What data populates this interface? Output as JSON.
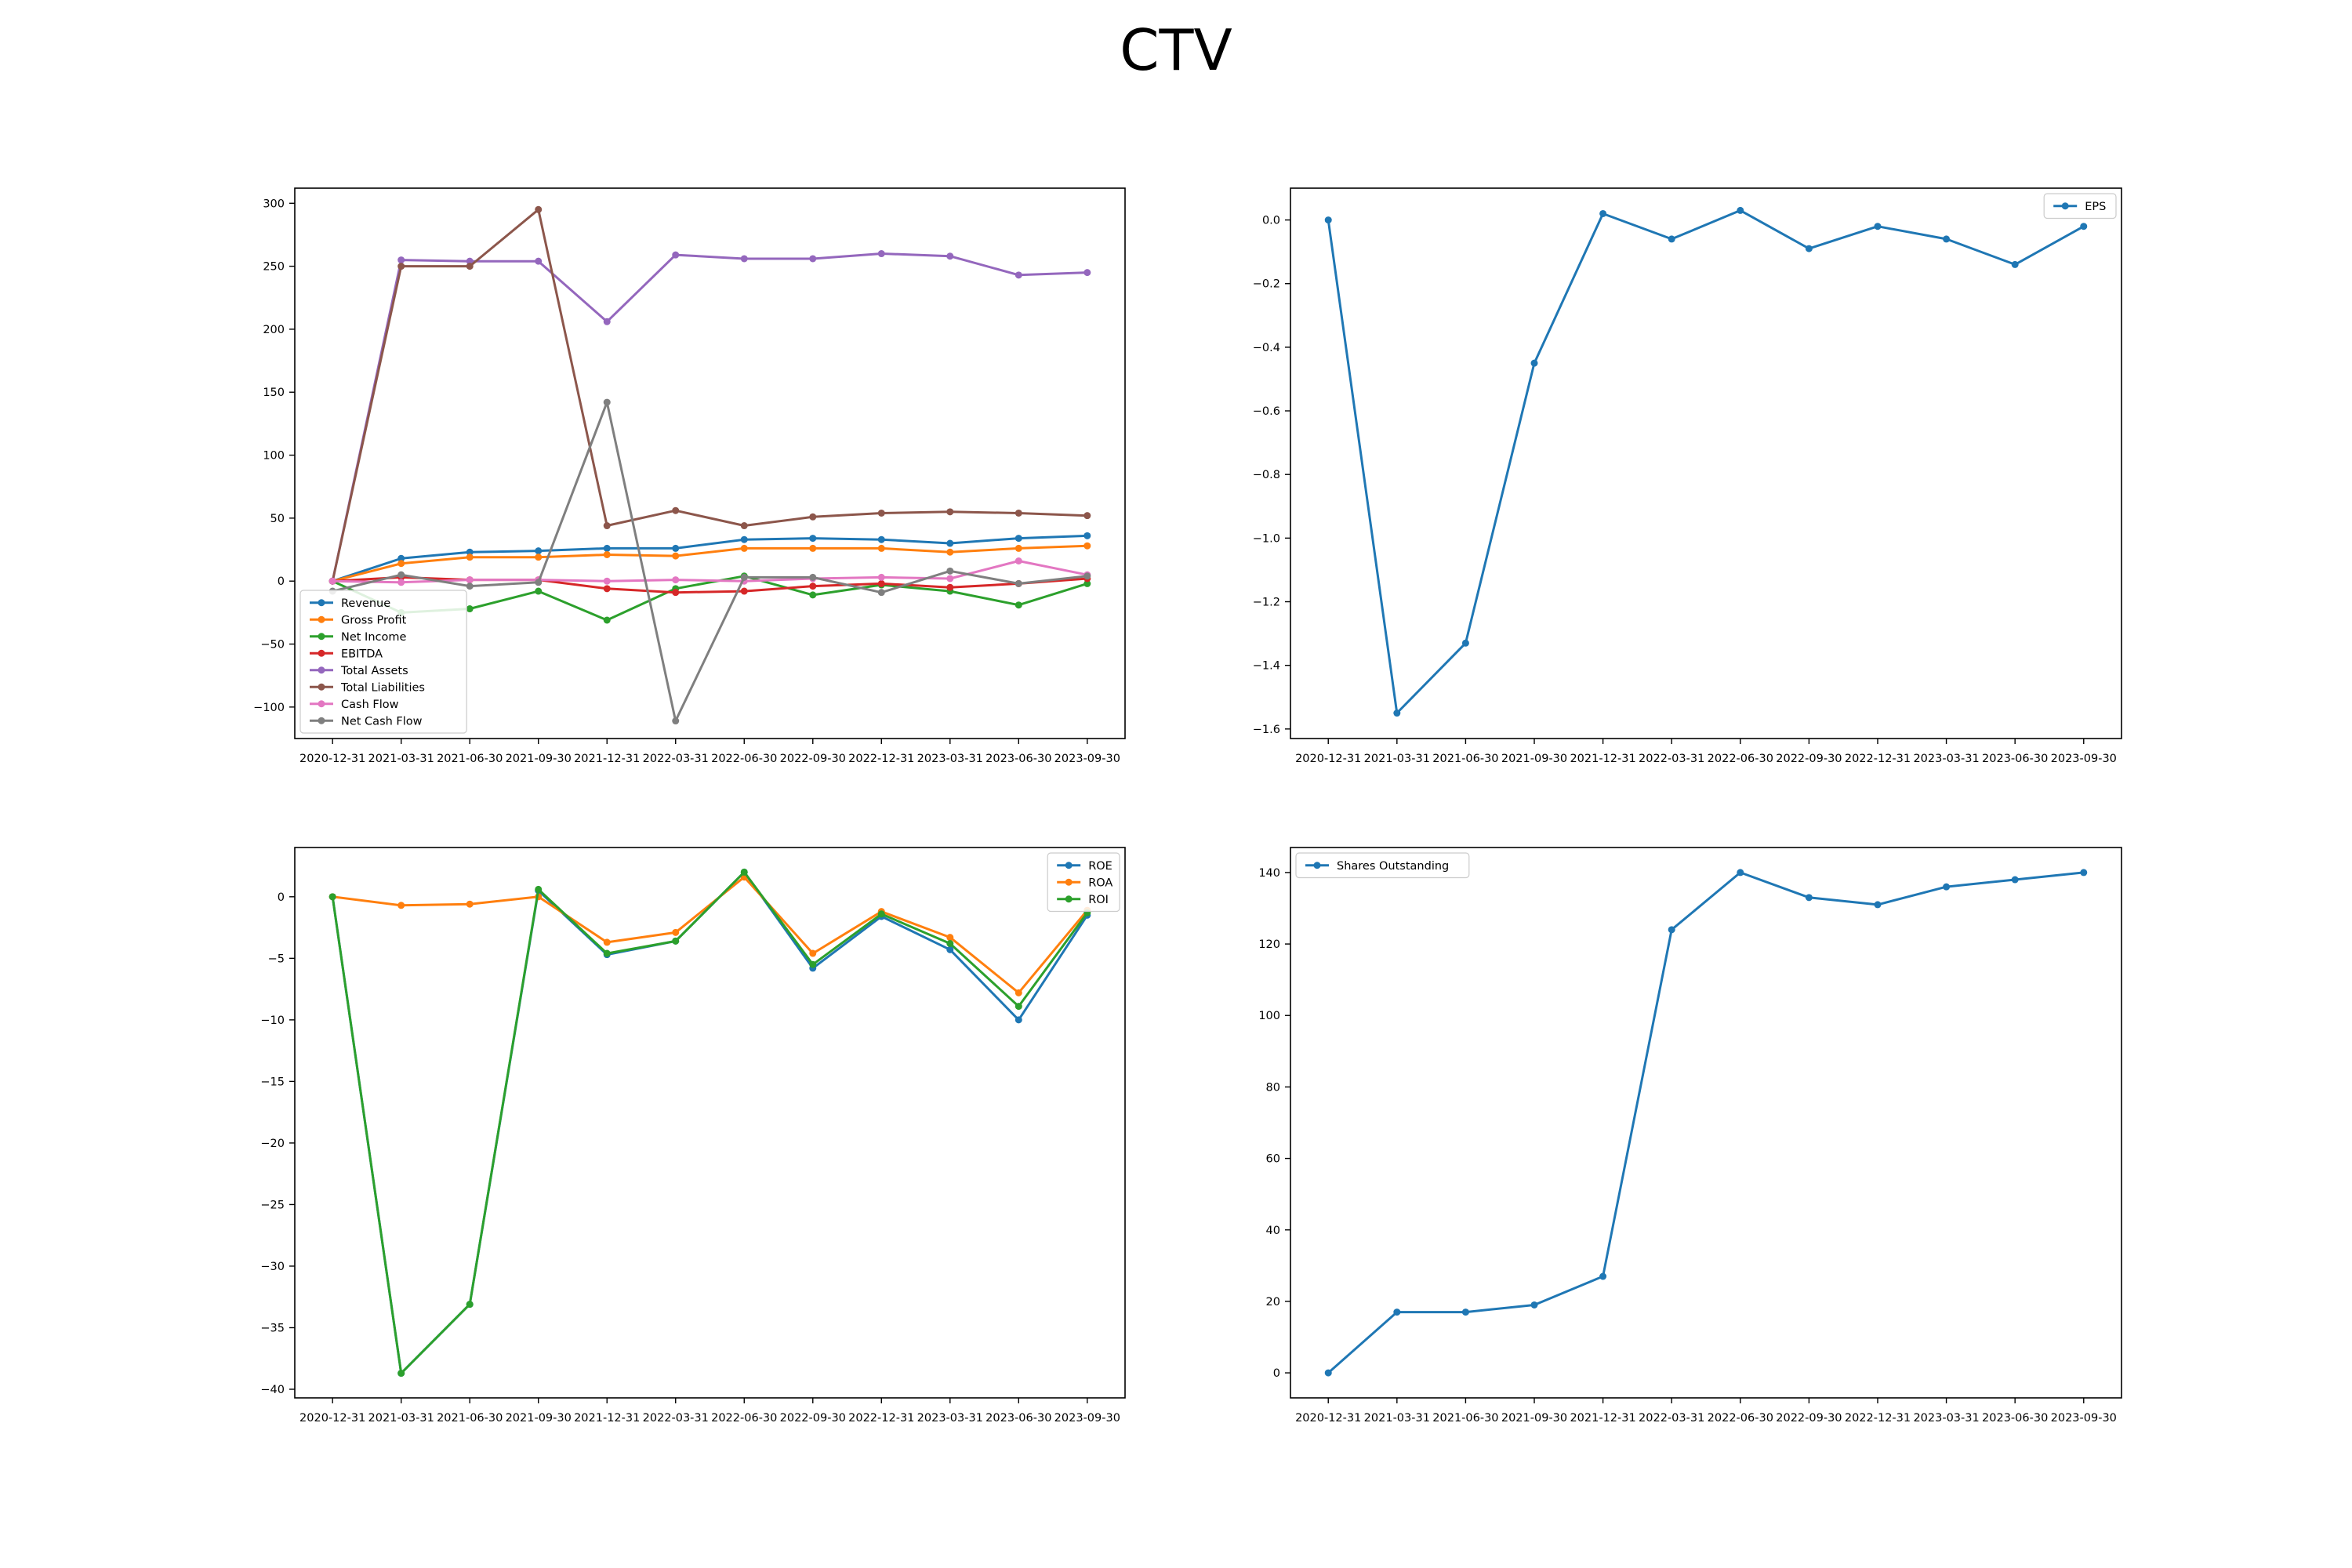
{
  "title": "CTV",
  "categories": [
    "2020-12-31",
    "2021-03-31",
    "2021-06-30",
    "2021-09-30",
    "2021-12-31",
    "2022-03-31",
    "2022-06-30",
    "2022-09-30",
    "2022-12-31",
    "2023-03-31",
    "2023-06-30",
    "2023-09-30"
  ],
  "chart_data": [
    {
      "type": "line",
      "title": "",
      "legend": "lower-left",
      "ylim": [
        -125,
        312
      ],
      "yticks": [
        -100,
        -50,
        0,
        50,
        100,
        150,
        200,
        250,
        300
      ],
      "series": [
        {
          "name": "Revenue",
          "color": "#1f77b4",
          "values": [
            0,
            18,
            23,
            24,
            26,
            26,
            33,
            34,
            33,
            30,
            34,
            36
          ]
        },
        {
          "name": "Gross Profit",
          "color": "#ff7f0e",
          "values": [
            0,
            14,
            19,
            19,
            21,
            20,
            26,
            26,
            26,
            23,
            26,
            28
          ]
        },
        {
          "name": "Net Income",
          "color": "#2ca02c",
          "values": [
            0,
            -25,
            -22,
            -8,
            -31,
            -6,
            4,
            -11,
            -3,
            -8,
            -19,
            -2
          ]
        },
        {
          "name": "EBITDA",
          "color": "#d62728",
          "values": [
            0,
            3,
            1,
            1,
            -6,
            -9,
            -8,
            -4,
            -2,
            -5,
            -2,
            2
          ]
        },
        {
          "name": "Total Assets",
          "color": "#9467bd",
          "values": [
            0,
            255,
            254,
            254,
            206,
            259,
            256,
            256,
            260,
            258,
            243,
            245
          ]
        },
        {
          "name": "Total Liabilities",
          "color": "#8c564b",
          "values": [
            0,
            250,
            250,
            295,
            44,
            56,
            44,
            51,
            54,
            55,
            54,
            52
          ]
        },
        {
          "name": "Cash Flow",
          "color": "#e377c2",
          "values": [
            0,
            -1,
            1,
            1,
            0,
            1,
            0,
            2,
            3,
            2,
            16,
            5
          ]
        },
        {
          "name": "Net Cash Flow",
          "color": "#7f7f7f",
          "values": [
            -8,
            5,
            -4,
            -1,
            142,
            -111,
            3,
            3,
            -9,
            8,
            -2,
            4
          ]
        }
      ]
    },
    {
      "type": "line",
      "title": "",
      "legend": "upper-right",
      "ylim": [
        -1.63,
        0.1
      ],
      "yticks": [
        -1.6,
        -1.4,
        -1.2,
        -1.0,
        -0.8,
        -0.6,
        -0.4,
        -0.2,
        0.0
      ],
      "series": [
        {
          "name": "EPS",
          "color": "#1f77b4",
          "values": [
            0.0,
            -1.55,
            -1.33,
            -0.45,
            0.02,
            -0.06,
            0.03,
            -0.09,
            -0.02,
            -0.06,
            -0.14,
            -0.02
          ]
        }
      ]
    },
    {
      "type": "line",
      "title": "",
      "legend": "upper-right",
      "ylim": [
        -40.7,
        4
      ],
      "yticks": [
        -40,
        -35,
        -30,
        -25,
        -20,
        -15,
        -10,
        -5,
        0
      ],
      "series": [
        {
          "name": "ROE",
          "color": "#1f77b4",
          "values": [
            0,
            -38.7,
            -33.1,
            0.5,
            -4.7,
            -3.6,
            2.0,
            -5.8,
            -1.6,
            -4.3,
            -10.0,
            -1.5
          ]
        },
        {
          "name": "ROA",
          "color": "#ff7f0e",
          "values": [
            0,
            -0.7,
            -0.6,
            0.0,
            -3.7,
            -2.9,
            1.6,
            -4.6,
            -1.2,
            -3.3,
            -7.8,
            -1.1
          ]
        },
        {
          "name": "ROI",
          "color": "#2ca02c",
          "values": [
            0,
            -38.7,
            -33.1,
            0.6,
            -4.6,
            -3.6,
            2.0,
            -5.5,
            -1.4,
            -3.8,
            -8.9,
            -1.3
          ]
        }
      ]
    },
    {
      "type": "line",
      "title": "",
      "legend": "upper-left",
      "ylim": [
        -7,
        147
      ],
      "yticks": [
        0,
        20,
        40,
        60,
        80,
        100,
        120,
        140
      ],
      "series": [
        {
          "name": "Shares Outstanding",
          "color": "#1f77b4",
          "values": [
            0,
            17,
            17,
            19,
            27,
            124,
            140,
            133,
            131,
            136,
            138,
            140
          ]
        }
      ]
    }
  ]
}
